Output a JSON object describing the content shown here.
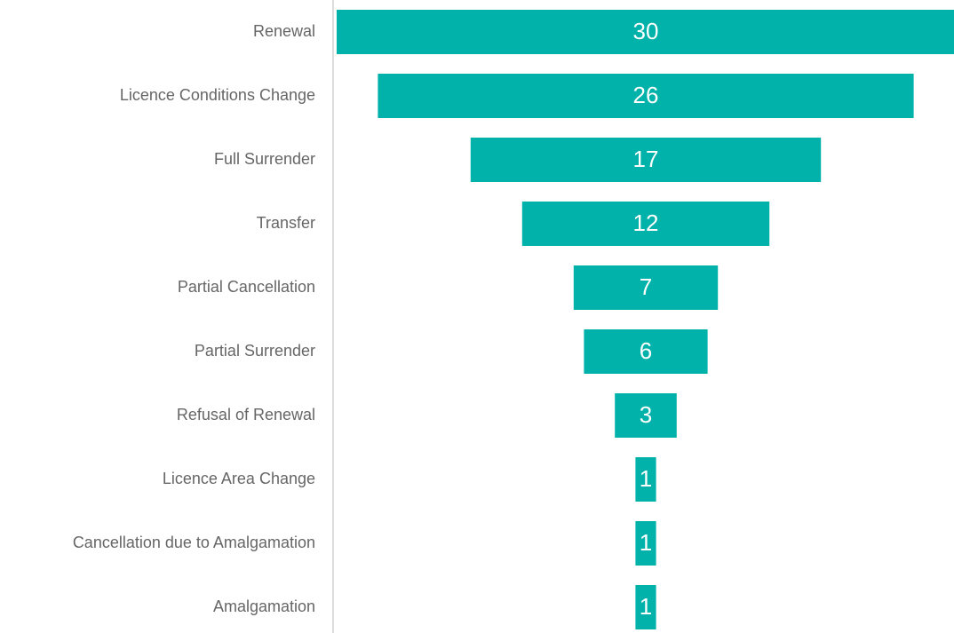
{
  "chart_data": {
    "type": "funnel",
    "categories": [
      "Renewal",
      "Licence Conditions Change",
      "Full Surrender",
      "Transfer",
      "Partial Cancellation",
      "Partial Surrender",
      "Refusal of Renewal",
      "Licence Area Change",
      "Cancellation due to Amalgamation",
      "Amalgamation"
    ],
    "values": [
      30,
      26,
      17,
      12,
      7,
      6,
      3,
      1,
      1,
      1
    ],
    "color": "#00b2a9"
  }
}
